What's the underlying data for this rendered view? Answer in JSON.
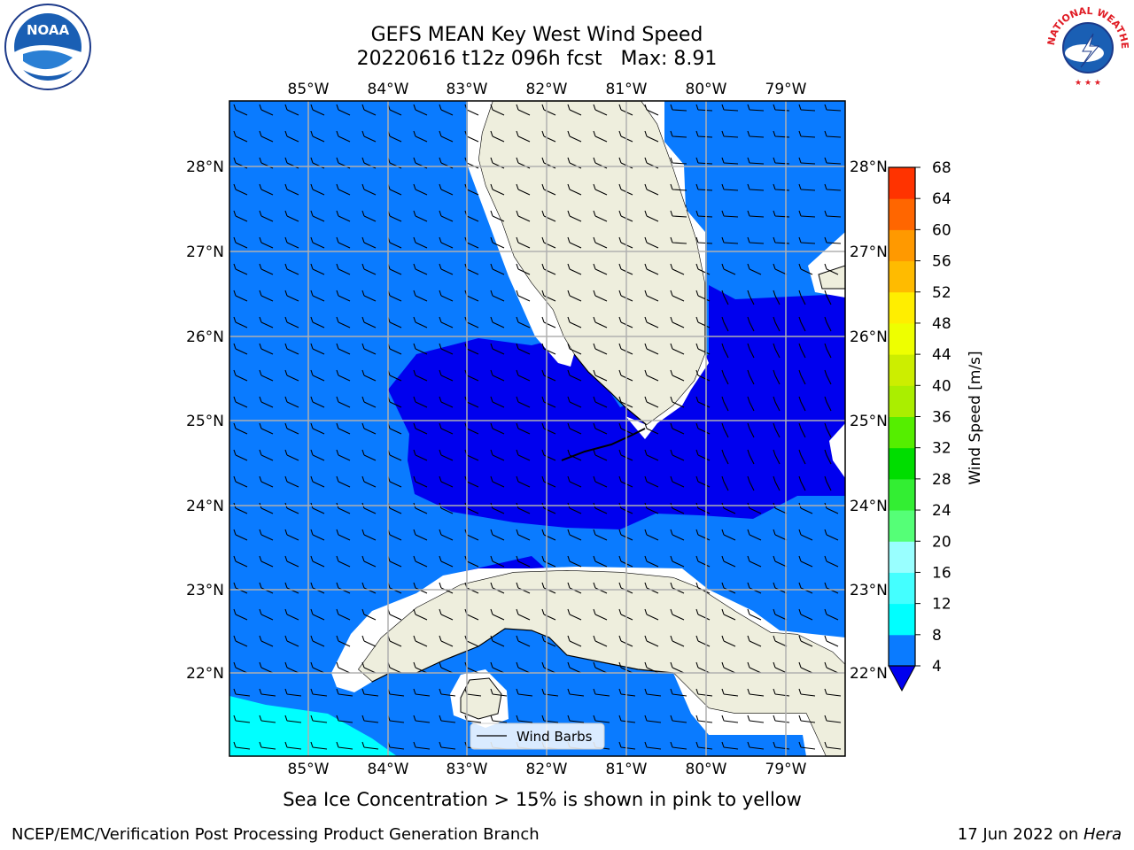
{
  "title": {
    "line1": "GEFS MEAN Key West Wind Speed",
    "line2": "20220616 t12z 096h fcst   Max: 8.91"
  },
  "map": {
    "lon_ticks": [
      "85°W",
      "84°W",
      "83°W",
      "82°W",
      "81°W",
      "80°W",
      "79°W"
    ],
    "lat_ticks": [
      "28°N",
      "27°N",
      "26°N",
      "25°N",
      "24°N",
      "23°N",
      "22°N"
    ],
    "legend_label": "Wind Barbs",
    "colors": {
      "band_4_8": "#0a7bff",
      "band_below_4": "#0000ee",
      "band_8_12": "#00ffff",
      "land": "#eeeedd",
      "grid": "#b0b0b0"
    }
  },
  "colorbar": {
    "label": "Wind Speed [m/s]",
    "ticks": [
      "4",
      "8",
      "12",
      "16",
      "20",
      "24",
      "28",
      "32",
      "36",
      "40",
      "44",
      "48",
      "52",
      "56",
      "60",
      "64",
      "68"
    ],
    "colors": [
      "#0a7bff",
      "#00ffff",
      "#44ffff",
      "#99ffff",
      "#55ff77",
      "#33ee33",
      "#00dd00",
      "#55ee00",
      "#aaee00",
      "#ccee00",
      "#eeff00",
      "#ffee00",
      "#ffbb00",
      "#ff9900",
      "#ff6600",
      "#ff3300",
      "#ff0000"
    ],
    "under_color": "#0000ee"
  },
  "footer": {
    "sea_ice_note": "Sea Ice Concentration > 15% is shown in pink to yellow",
    "credit_left": "NCEP/EMC/Verification Post Processing Product Generation Branch",
    "date_prefix": "17 Jun 2022 on ",
    "machine": "Hera"
  },
  "logos": {
    "noaa": "NOAA",
    "nws": "NATIONAL WEATHER SERVICE"
  }
}
